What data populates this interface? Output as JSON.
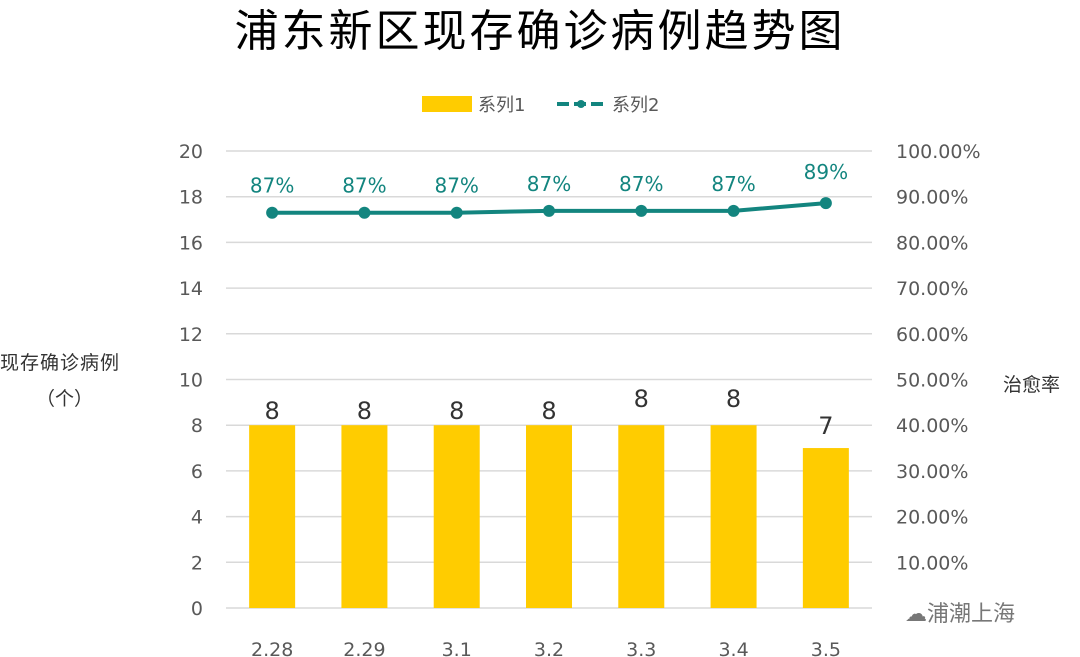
{
  "chart_data": {
    "type": "bar",
    "title": "浦东新区现存确诊病例趋势图",
    "categories": [
      "2.28",
      "2.29",
      "3.1",
      "3.2",
      "3.3",
      "3.4",
      "3.5"
    ],
    "series": [
      {
        "name": "系列1",
        "type": "bar",
        "axis": "left",
        "values": [
          8,
          8,
          8,
          8,
          8,
          8,
          7
        ],
        "labels": [
          "8",
          "8",
          "8",
          "8",
          "8",
          "8",
          "7"
        ]
      },
      {
        "name": "系列2",
        "type": "line",
        "axis": "right",
        "values": [
          86.5,
          86.5,
          86.5,
          86.9,
          86.9,
          86.9,
          88.6
        ],
        "labels": [
          "87%",
          "87%",
          "87%",
          "87%",
          "87%",
          "87%",
          "89%"
        ]
      }
    ],
    "ylabel": "现存确诊病例",
    "ylabel_unit": "（个）",
    "y2label": "治愈率",
    "ylim": [
      0,
      20
    ],
    "yticks": [
      "0",
      "2",
      "4",
      "6",
      "8",
      "10",
      "12",
      "14",
      "16",
      "18",
      "20"
    ],
    "y2lim": [
      0,
      100
    ],
    "y2ticks": [
      "",
      "10.00%",
      "20.00%",
      "30.00%",
      "40.00%",
      "50.00%",
      "60.00%",
      "70.00%",
      "80.00%",
      "90.00%",
      "100.00%"
    ],
    "grid": true,
    "legend_position": "top-center",
    "colors": {
      "bar": "#FFCC00",
      "line": "#13857F",
      "title": "#3a3a3a",
      "grid": "#d9d9d9",
      "text": "#595959"
    }
  },
  "watermark": "浦潮上海"
}
